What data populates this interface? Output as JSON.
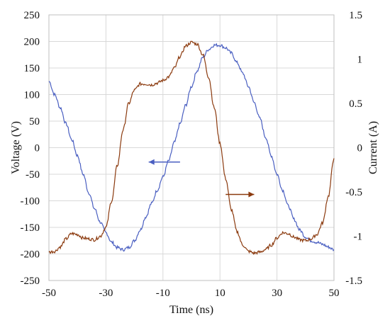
{
  "chart_data": {
    "type": "line",
    "title": "",
    "xlabel": "Time (ns)",
    "ylabel_left": "Voltage (V)",
    "ylabel_right": "Current (A)",
    "xlim": [
      -50,
      50
    ],
    "ylim_left": [
      -250,
      250
    ],
    "ylim_right": [
      -1.5,
      1.5
    ],
    "grid": true,
    "x_ticks": [
      "-50",
      "-30",
      "-10",
      "10",
      "30",
      "50"
    ],
    "y_left_ticks": [
      "250",
      "200",
      "150",
      "100",
      "50",
      "0",
      "-50",
      "-100",
      "-150",
      "-200",
      "-250"
    ],
    "y_right_ticks": [
      "1.5",
      "1",
      "0.5",
      "0",
      "-0.5",
      "-1",
      "-1.5"
    ],
    "series": [
      {
        "axis": "left",
        "color": "#4a5fc1",
        "x": [
          -50,
          -48,
          -46,
          -44,
          -42,
          -40,
          -38,
          -36,
          -34,
          -32,
          -30,
          -28,
          -26,
          -24,
          -22,
          -20,
          -18,
          -16,
          -14,
          -12,
          -10,
          -8,
          -6,
          -4,
          -2,
          0,
          2,
          4,
          6,
          8,
          10,
          12,
          14,
          16,
          18,
          20,
          22,
          24,
          26,
          28,
          30,
          32,
          34,
          36,
          38,
          40,
          42,
          44,
          46,
          48,
          50
        ],
        "y": [
          125,
          100,
          75,
          45,
          15,
          -15,
          -50,
          -85,
          -115,
          -140,
          -160,
          -178,
          -188,
          -192,
          -188,
          -175,
          -155,
          -130,
          -105,
          -80,
          -55,
          -25,
          10,
          45,
          80,
          115,
          145,
          170,
          185,
          193,
          193,
          188,
          178,
          160,
          140,
          115,
          85,
          55,
          20,
          -15,
          -50,
          -80,
          -110,
          -135,
          -155,
          -168,
          -175,
          -178,
          -182,
          -187,
          -192
        ]
      },
      {
        "axis": "right",
        "color": "#8b3a0e",
        "x": [
          -50,
          -48,
          -46,
          -44,
          -42,
          -40,
          -38,
          -36,
          -34,
          -32,
          -30,
          -28,
          -26,
          -24,
          -22,
          -20,
          -18,
          -16,
          -14,
          -12,
          -10,
          -8,
          -6,
          -4,
          -2,
          0,
          2,
          4,
          6,
          8,
          10,
          12,
          14,
          16,
          18,
          20,
          22,
          24,
          26,
          28,
          30,
          32,
          34,
          36,
          38,
          40,
          42,
          44,
          46,
          48,
          50
        ],
        "y": [
          -1.18,
          -1.17,
          -1.12,
          -1.03,
          -0.97,
          -0.98,
          -1.02,
          -1.03,
          -1.04,
          -1.0,
          -0.9,
          -0.6,
          -0.2,
          0.2,
          0.5,
          0.65,
          0.72,
          0.72,
          0.71,
          0.73,
          0.76,
          0.8,
          0.9,
          1.03,
          1.15,
          1.19,
          1.17,
          1.05,
          0.8,
          0.45,
          0.05,
          -0.35,
          -0.7,
          -0.95,
          -1.1,
          -1.17,
          -1.19,
          -1.18,
          -1.15,
          -1.1,
          -1.02,
          -0.96,
          -0.97,
          -1.01,
          -1.04,
          -1.05,
          -1.03,
          -0.98,
          -0.85,
          -0.55,
          -0.12
        ]
      }
    ],
    "annotations": [
      {
        "type": "arrow",
        "series": 0,
        "from": [
          -4,
          -27
        ],
        "to": [
          -15,
          -27
        ],
        "color": "#4a5fc1"
      },
      {
        "type": "arrow",
        "series": 1,
        "from": [
          12,
          -88
        ],
        "to": [
          22,
          -88
        ],
        "color": "#8b3a0e"
      }
    ]
  }
}
